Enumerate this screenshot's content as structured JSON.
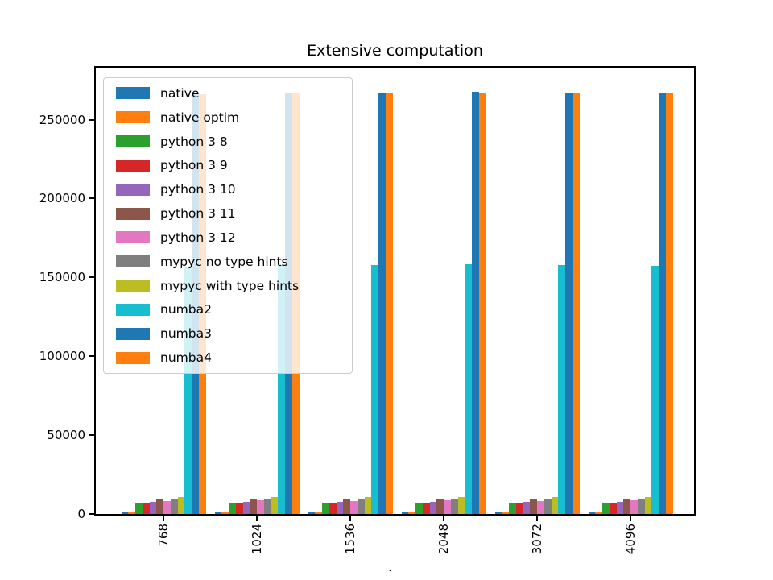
{
  "title": "Extensive computation",
  "xlabel_fragment": ".",
  "chart_data": {
    "type": "bar",
    "title": "Extensive computation",
    "categories": [
      "768",
      "1024",
      "1536",
      "2048",
      "3072",
      "4096"
    ],
    "series": [
      {
        "name": "native",
        "color": "#1f77b4",
        "values": [
          1400,
          1300,
          1350,
          1400,
          1350,
          1400
        ]
      },
      {
        "name": "native optim",
        "color": "#ff7f0e",
        "values": [
          900,
          850,
          900,
          900,
          850,
          900
        ]
      },
      {
        "name": "python 3 8",
        "color": "#2ca02c",
        "values": [
          7100,
          7000,
          7100,
          7300,
          7100,
          7200
        ]
      },
      {
        "name": "python 3 9",
        "color": "#d62728",
        "values": [
          6700,
          6900,
          7000,
          7100,
          7000,
          7100
        ]
      },
      {
        "name": "python 3 10",
        "color": "#9467bd",
        "values": [
          7600,
          7700,
          7700,
          7800,
          7700,
          7800
        ]
      },
      {
        "name": "python 3 11",
        "color": "#8c564b",
        "values": [
          9600,
          9700,
          9500,
          9700,
          9600,
          9700
        ]
      },
      {
        "name": "python 3 12",
        "color": "#e377c2",
        "values": [
          8300,
          8500,
          8400,
          8500,
          8400,
          8500
        ]
      },
      {
        "name": "mypyc no type hints",
        "color": "#7f7f7f",
        "values": [
          9400,
          9300,
          9400,
          9300,
          9500,
          9400
        ]
      },
      {
        "name": "mypyc with type hints",
        "color": "#bcbd22",
        "values": [
          10700,
          10600,
          10800,
          10700,
          10800,
          10800
        ]
      },
      {
        "name": "numba2",
        "color": "#17becf",
        "values": [
          157000,
          158000,
          158000,
          158500,
          158000,
          157500
        ]
      },
      {
        "name": "numba3",
        "color": "#1f77b4",
        "values": [
          266500,
          267000,
          267000,
          267500,
          267000,
          267000
        ]
      },
      {
        "name": "numba4",
        "color": "#ff7f0e",
        "values": [
          266000,
          266500,
          267000,
          267000,
          266500,
          266500
        ]
      }
    ],
    "yticks": [
      0,
      50000,
      100000,
      150000,
      200000,
      250000
    ],
    "ytick_labels": [
      "0",
      "50000",
      "100000",
      "150000",
      "200000",
      "250000"
    ],
    "ylim": [
      0,
      283000
    ],
    "xtick_rotation": 90,
    "legend_position": "upper left",
    "grid": false
  }
}
